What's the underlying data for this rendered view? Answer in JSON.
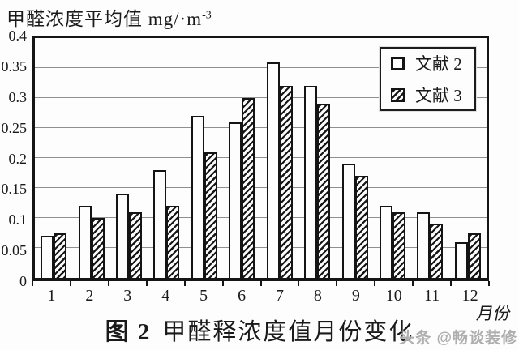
{
  "figure": {
    "y_axis_title": {
      "main": "甲醛浓度平均值 mg/·m",
      "sup": "-3"
    },
    "x_axis_title": "月份",
    "caption": {
      "label": "图 2",
      "text": "甲醛释浓度值月份变化"
    },
    "watermark": "头条 @畅谈装修"
  },
  "colors": {
    "ink": "#151515",
    "grid": "#8f8f8f",
    "background": "#fdfdfd",
    "watermark": "#aeaeae"
  },
  "chart_data": {
    "type": "bar",
    "title": "甲醛浓度平均值 mg/·m⁻³",
    "xlabel": "月份",
    "ylabel": "甲醛浓度平均值 mg/·m⁻³",
    "categories": [
      "1",
      "2",
      "3",
      "4",
      "5",
      "6",
      "7",
      "8",
      "9",
      "10",
      "11",
      "12"
    ],
    "series": [
      {
        "name": "文献 2",
        "style": "plain",
        "values": [
          0.07,
          0.12,
          0.14,
          0.18,
          0.27,
          0.26,
          0.36,
          0.32,
          0.19,
          0.12,
          0.11,
          0.06
        ]
      },
      {
        "name": "文献 3",
        "style": "hatched",
        "values": [
          0.075,
          0.1,
          0.11,
          0.12,
          0.21,
          0.3,
          0.32,
          0.29,
          0.17,
          0.11,
          0.09,
          0.075
        ]
      }
    ],
    "ylim": [
      0,
      0.4
    ],
    "y_ticks": [
      "0",
      "0.05",
      "0.1",
      "0.15",
      "0.2",
      "0.25",
      "0.3",
      "0.35",
      "0.4"
    ],
    "grid": true,
    "legend_position": "top-right"
  }
}
